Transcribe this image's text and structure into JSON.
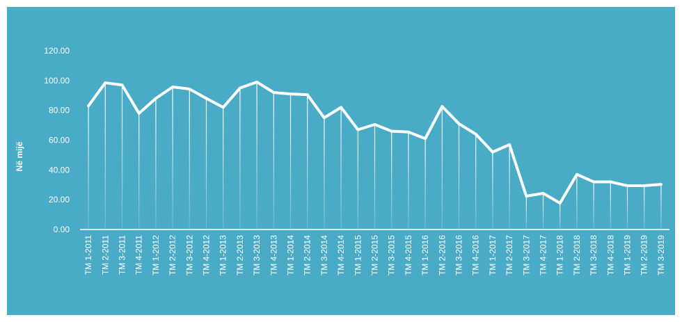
{
  "chart_data": {
    "type": "line",
    "y_label": "Në mijë",
    "categories": [
      "TM 1-2011",
      "TM 2-2011",
      "TM 3-2011",
      "TM 4-2011",
      "TM 1-2012",
      "TM 2-2012",
      "TM 3-2012",
      "TM 4-2012",
      "TM 1-2013",
      "TM 2-2013",
      "TM 3-2013",
      "TM 4-2013",
      "TM 1-2014",
      "TM 2-2014",
      "TM 3-2014",
      "TM 4-2014",
      "TM 1-2015",
      "TM 2-2015",
      "TM 3-2015",
      "TM 4-2015",
      "TM 1-2016",
      "TM 2-2016",
      "TM 3-2016",
      "TM 4-2016",
      "TM 1-2017",
      "TM 2-2017",
      "TM 3-2017",
      "TM 4-2017",
      "TM 1-2018",
      "TM 2-2018",
      "TM 3-2018",
      "TM 4-2018",
      "TM 1-2019",
      "TM 2-2019",
      "TM 3-2019"
    ],
    "values": [
      83,
      98.5,
      97,
      78,
      88,
      95.7,
      94.3,
      88,
      82,
      95,
      99,
      92,
      91,
      90.5,
      75,
      82,
      67,
      70.5,
      66,
      65.5,
      61,
      82.6,
      71,
      64,
      52,
      57,
      22.4,
      24.3,
      17.7,
      37,
      32,
      32,
      29.4,
      29.4,
      30.3
    ],
    "color": "#ffffff",
    "drop_lines": true,
    "ylim": [
      0,
      120
    ],
    "yticks": [
      {
        "value": 0,
        "label": "0.00"
      },
      {
        "value": 20,
        "label": "20.00"
      },
      {
        "value": 40,
        "label": "40.00"
      },
      {
        "value": 60,
        "label": "60.00"
      },
      {
        "value": 80,
        "label": "80.00"
      },
      {
        "value": 100,
        "label": "100.00"
      },
      {
        "value": 120,
        "label": "120.00"
      }
    ]
  }
}
